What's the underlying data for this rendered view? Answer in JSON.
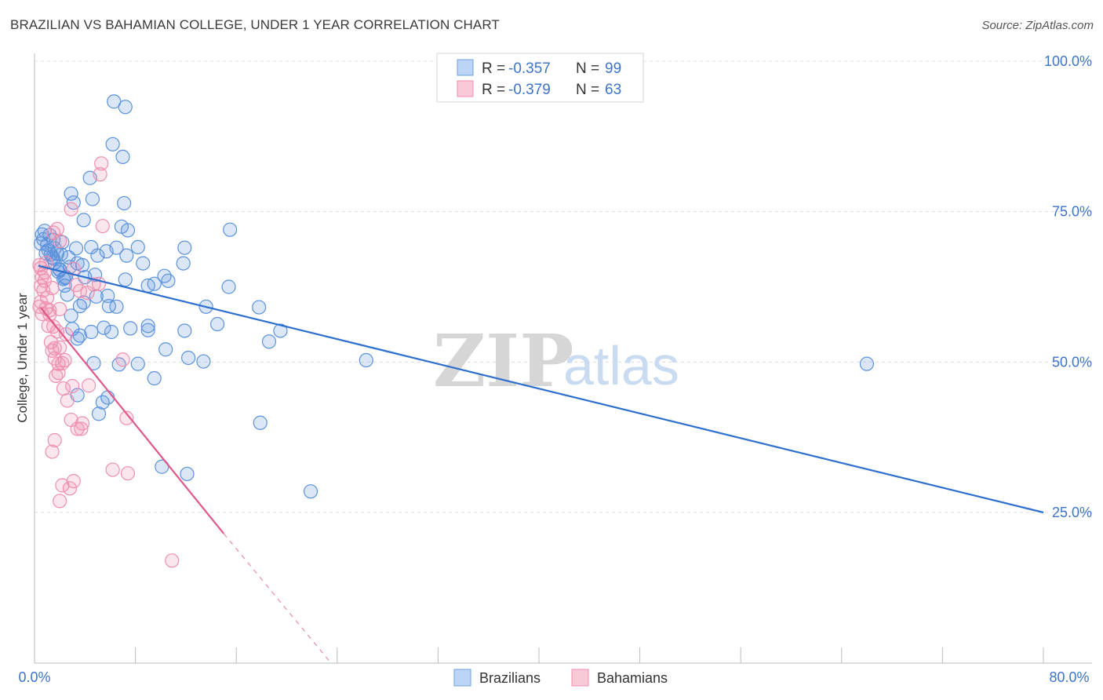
{
  "title": "BRAZILIAN VS BAHAMIAN COLLEGE, UNDER 1 YEAR CORRELATION CHART",
  "source": "Source: ZipAtlas.com",
  "watermark": {
    "zip": "ZIP",
    "atlas": "atlas"
  },
  "chart_data": {
    "type": "scatter",
    "title": "BRAZILIAN VS BAHAMIAN COLLEGE, UNDER 1 YEAR CORRELATION CHART",
    "xlabel": "",
    "ylabel": "College, Under 1 year",
    "xlim": [
      0,
      80
    ],
    "ylim": [
      0,
      103
    ],
    "x_tick_labels": [
      "0.0%",
      "80.0%"
    ],
    "y_ticks": [
      25,
      50,
      75,
      100
    ],
    "y_tick_labels": [
      "25.0%",
      "50.0%",
      "75.0%",
      "100.0%"
    ],
    "legend": [
      {
        "r_label": "R = ",
        "r": "-0.357",
        "n_label": "N = ",
        "n": "99",
        "color": "#6fa0e0"
      },
      {
        "r_label": "R = ",
        "r": "-0.379",
        "n_label": "N = ",
        "n": "63",
        "color": "#f08cab"
      }
    ],
    "series": [
      {
        "name": "Brazilians",
        "color": "#5b92dc",
        "line_color": "#2d6fcf",
        "trend": {
          "x0": 0.3,
          "y0": 66,
          "x1": 80,
          "y1": 25
        },
        "points": [
          [
            0.5,
            69.7
          ],
          [
            0.6,
            71.2
          ],
          [
            0.8,
            71.8
          ],
          [
            0.7,
            70.4
          ],
          [
            0.9,
            68.1
          ],
          [
            1.0,
            69.5
          ],
          [
            1.2,
            71.1
          ],
          [
            1.5,
            70.3
          ],
          [
            1.1,
            68.6
          ],
          [
            1.3,
            67.9
          ],
          [
            1.6,
            68.9
          ],
          [
            1.4,
            67.4
          ],
          [
            1.8,
            68.0
          ],
          [
            1.6,
            66.5
          ],
          [
            2.2,
            69.9
          ],
          [
            2.7,
            67.4
          ],
          [
            2.0,
            65.4
          ],
          [
            1.9,
            65.0
          ],
          [
            2.3,
            63.8
          ],
          [
            2.8,
            65.8
          ],
          [
            2.5,
            64.1
          ],
          [
            2.4,
            62.7
          ],
          [
            3.3,
            68.9
          ],
          [
            3.4,
            66.4
          ],
          [
            4.5,
            69.1
          ],
          [
            5.0,
            67.7
          ],
          [
            5.7,
            68.4
          ],
          [
            6.5,
            69.0
          ],
          [
            7.3,
            67.7
          ],
          [
            8.2,
            69.1
          ],
          [
            6.9,
            72.5
          ],
          [
            7.4,
            71.9
          ],
          [
            3.9,
            73.6
          ],
          [
            2.9,
            78.0
          ],
          [
            3.1,
            76.5
          ],
          [
            4.6,
            77.1
          ],
          [
            4.4,
            80.6
          ],
          [
            7.1,
            76.4
          ],
          [
            6.2,
            86.2
          ],
          [
            7.0,
            84.1
          ],
          [
            6.3,
            93.3
          ],
          [
            7.2,
            92.4
          ],
          [
            4.8,
            64.5
          ],
          [
            4.0,
            64.1
          ],
          [
            7.2,
            63.7
          ],
          [
            9.0,
            62.7
          ],
          [
            9.5,
            63.0
          ],
          [
            10.6,
            63.5
          ],
          [
            10.3,
            64.3
          ],
          [
            11.8,
            66.4
          ],
          [
            11.9,
            69.0
          ],
          [
            8.6,
            66.4
          ],
          [
            15.5,
            72.0
          ],
          [
            2.0,
            65.3
          ],
          [
            2.6,
            61.2
          ],
          [
            3.6,
            59.3
          ],
          [
            3.9,
            59.9
          ],
          [
            4.9,
            60.9
          ],
          [
            5.8,
            61.0
          ],
          [
            5.9,
            59.3
          ],
          [
            6.5,
            59.2
          ],
          [
            2.9,
            57.7
          ],
          [
            3.0,
            55.5
          ],
          [
            3.4,
            53.9
          ],
          [
            3.6,
            54.4
          ],
          [
            4.5,
            55.0
          ],
          [
            5.5,
            55.7
          ],
          [
            6.1,
            55.0
          ],
          [
            7.6,
            55.6
          ],
          [
            9.0,
            56.0
          ],
          [
            9.0,
            55.3
          ],
          [
            11.9,
            55.2
          ],
          [
            13.6,
            59.2
          ],
          [
            14.5,
            56.3
          ],
          [
            15.4,
            62.5
          ],
          [
            17.8,
            59.1
          ],
          [
            18.6,
            53.4
          ],
          [
            19.5,
            55.2
          ],
          [
            12.2,
            50.7
          ],
          [
            10.4,
            52.1
          ],
          [
            13.4,
            50.1
          ],
          [
            6.7,
            49.6
          ],
          [
            8.2,
            49.7
          ],
          [
            4.7,
            49.8
          ],
          [
            9.5,
            47.3
          ],
          [
            3.4,
            44.5
          ],
          [
            5.1,
            41.4
          ],
          [
            5.4,
            43.3
          ],
          [
            5.8,
            44.1
          ],
          [
            10.1,
            32.6
          ],
          [
            12.1,
            31.4
          ],
          [
            17.9,
            39.9
          ],
          [
            21.9,
            28.5
          ],
          [
            26.3,
            50.3
          ],
          [
            66.0,
            49.7
          ],
          [
            2.4,
            64.0
          ],
          [
            1.5,
            67.2
          ],
          [
            3.8,
            66.1
          ],
          [
            2.1,
            67.9
          ]
        ]
      },
      {
        "name": "Bahamians",
        "color": "#ef8fae",
        "line_color": "#e0578a",
        "trend": {
          "x0": 0.5,
          "y0": 59,
          "x1": 15,
          "y1": 21.5
        },
        "trend_dashed": {
          "x0": 15,
          "y0": 21.5,
          "x1": 23.5,
          "y1": 0
        },
        "points": [
          [
            0.5,
            65.6
          ],
          [
            0.6,
            64.1
          ],
          [
            0.5,
            62.6
          ],
          [
            0.7,
            61.9
          ],
          [
            0.8,
            63.5
          ],
          [
            0.9,
            66.5
          ],
          [
            0.4,
            66.1
          ],
          [
            0.6,
            58.0
          ],
          [
            0.9,
            58.9
          ],
          [
            1.0,
            60.7
          ],
          [
            1.2,
            57.9
          ],
          [
            1.4,
            62.3
          ],
          [
            1.5,
            71.5
          ],
          [
            1.8,
            72.1
          ],
          [
            2.0,
            70.1
          ],
          [
            2.9,
            75.4
          ],
          [
            3.1,
            65.5
          ],
          [
            3.3,
            62.8
          ],
          [
            3.6,
            61.8
          ],
          [
            4.2,
            61.5
          ],
          [
            4.7,
            62.9
          ],
          [
            5.1,
            63.0
          ],
          [
            5.3,
            83.0
          ],
          [
            5.2,
            81.2
          ],
          [
            5.4,
            72.6
          ],
          [
            1.2,
            58.6
          ],
          [
            1.5,
            55.9
          ],
          [
            2.0,
            58.8
          ],
          [
            1.8,
            55.1
          ],
          [
            1.3,
            53.3
          ],
          [
            1.4,
            51.9
          ],
          [
            1.6,
            52.3
          ],
          [
            2.0,
            52.4
          ],
          [
            1.6,
            50.6
          ],
          [
            1.9,
            49.7
          ],
          [
            2.4,
            50.3
          ],
          [
            2.2,
            49.8
          ],
          [
            1.9,
            48.2
          ],
          [
            1.7,
            47.7
          ],
          [
            2.3,
            45.6
          ],
          [
            2.6,
            43.6
          ],
          [
            3.0,
            46.0
          ],
          [
            4.3,
            46.1
          ],
          [
            2.9,
            40.4
          ],
          [
            3.4,
            38.9
          ],
          [
            3.8,
            39.8
          ],
          [
            3.7,
            38.9
          ],
          [
            1.6,
            37.0
          ],
          [
            1.4,
            35.1
          ],
          [
            7.0,
            50.4
          ],
          [
            7.3,
            40.7
          ],
          [
            6.2,
            32.1
          ],
          [
            7.4,
            31.5
          ],
          [
            3.1,
            30.2
          ],
          [
            2.2,
            29.5
          ],
          [
            2.8,
            29.0
          ],
          [
            2.0,
            26.9
          ],
          [
            10.9,
            17.0
          ],
          [
            0.4,
            59.2
          ],
          [
            0.5,
            60.0
          ],
          [
            1.1,
            56.0
          ],
          [
            2.5,
            54.6
          ],
          [
            0.8,
            64.9
          ]
        ]
      }
    ]
  }
}
